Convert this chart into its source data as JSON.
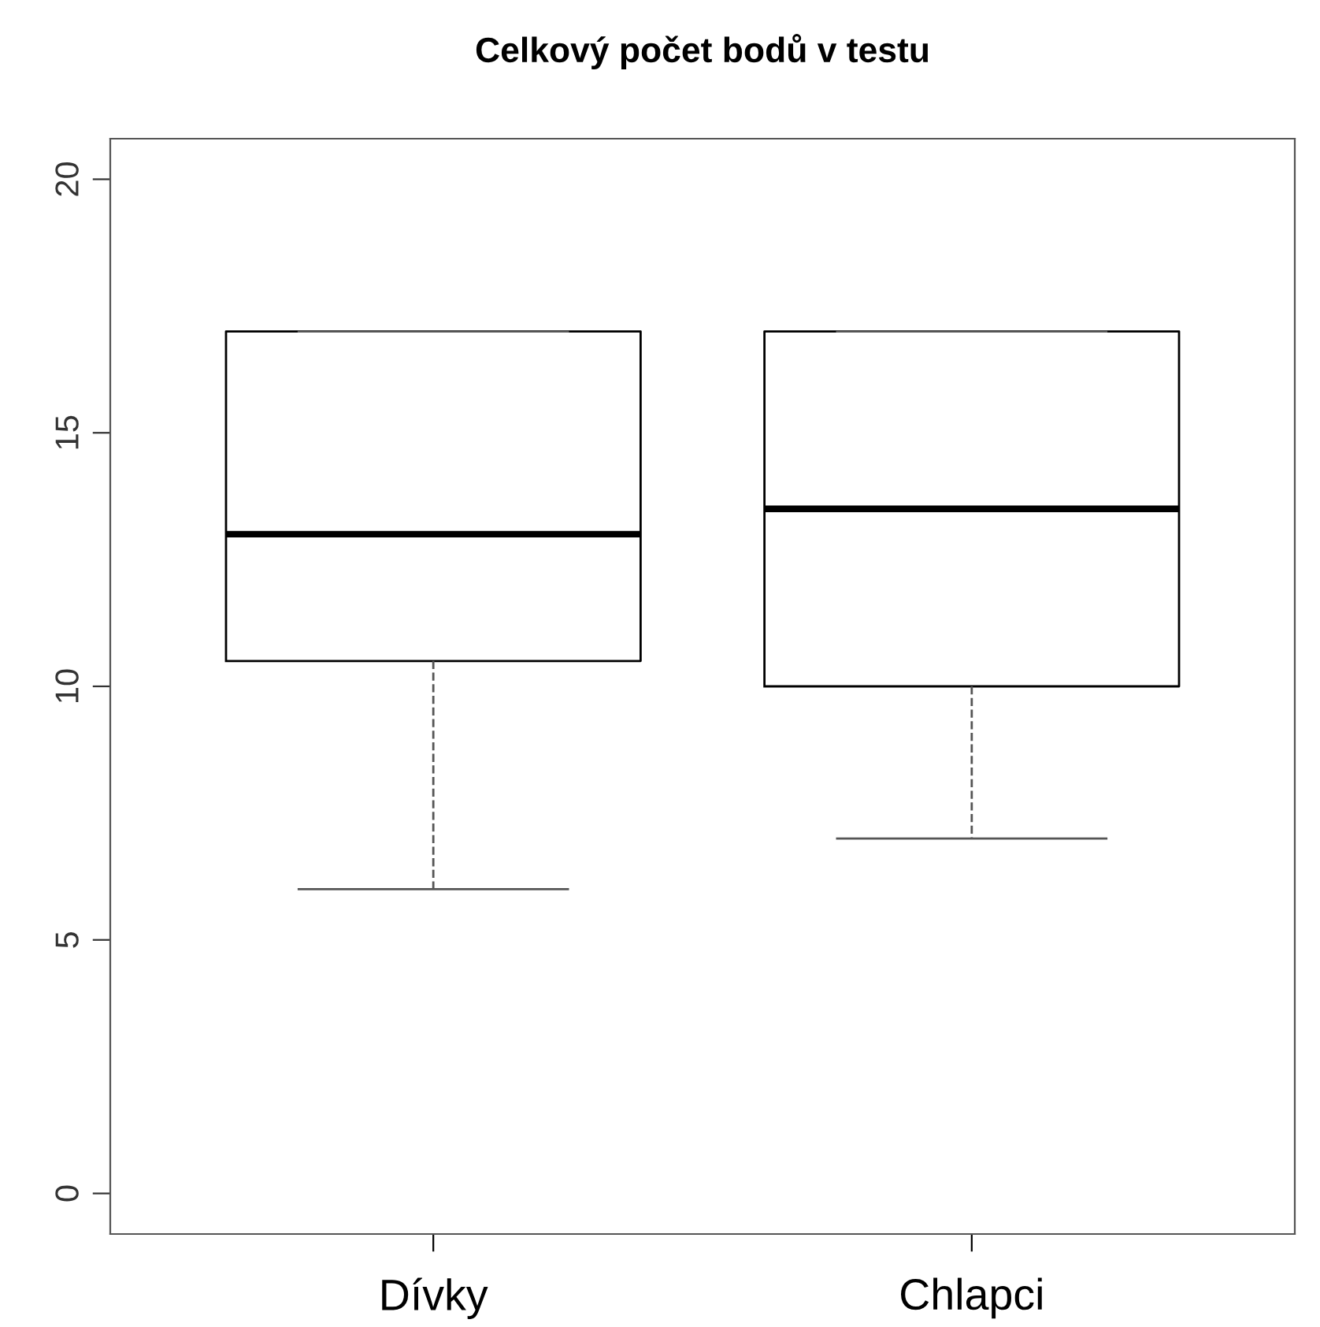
{
  "chart_data": {
    "type": "box",
    "title": "Celkový počet bodů v testu",
    "categories": [
      "Dívky",
      "Chlapci"
    ],
    "boxes": [
      {
        "low": 6,
        "q1": 10.5,
        "median": 13,
        "q3": 17,
        "high": 17
      },
      {
        "low": 7,
        "q1": 10,
        "median": 13.5,
        "q3": 17,
        "high": 17
      }
    ],
    "ylim": [
      -0.8,
      20.8
    ],
    "yticks": [
      0,
      5,
      10,
      15,
      20
    ],
    "grid": false
  }
}
